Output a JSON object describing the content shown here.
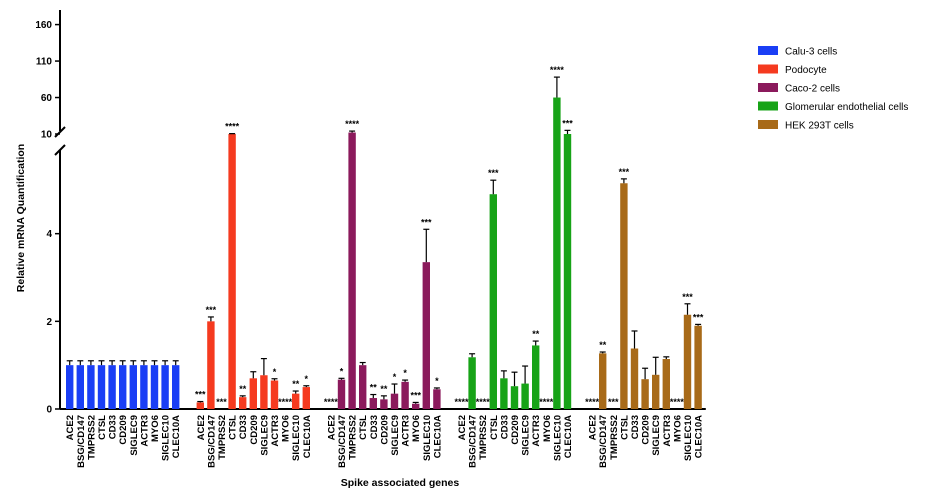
{
  "chart_data": {
    "type": "bar",
    "title": "",
    "xlabel": "Spike associated genes",
    "ylabel": "Relative mRNA Quantification",
    "yaxis": {
      "lower_range": [
        0,
        6
      ],
      "lower_ticks": [
        "0",
        "2",
        "4"
      ],
      "upper_range": [
        10,
        180
      ],
      "upper_ticks": [
        "10",
        "60",
        "110",
        "160"
      ],
      "broken": true
    },
    "grid": false,
    "legend_position": "top-right",
    "categories": [
      "ACE2",
      "BSG/CD147",
      "TMPRSS2",
      "CTSL",
      "CD33",
      "CD209",
      "SIGLEC9",
      "ACTR3",
      "MYO6",
      "SIGLEC10",
      "CLEC10A"
    ],
    "series": [
      {
        "name": "Calu-3 cells",
        "color": "#1a3ef5",
        "values": [
          1,
          1,
          1,
          1,
          1,
          1,
          1,
          1,
          1,
          1,
          1
        ],
        "errors": [
          0.1,
          0.1,
          0.1,
          0.1,
          0.1,
          0.1,
          0.1,
          0.1,
          0.1,
          0.1,
          0.1
        ],
        "significance": [
          "",
          "",
          "",
          "",
          "",
          "",
          "",
          "",
          "",
          "",
          ""
        ]
      },
      {
        "name": "Podocyte",
        "color": "#f53a1f",
        "values": [
          0.15,
          2.0,
          0,
          10,
          0.27,
          0.7,
          0.77,
          0.65,
          0,
          0.35,
          0.5
        ],
        "errors": [
          0.02,
          0.1,
          0,
          0.5,
          0.03,
          0.15,
          0.38,
          0.04,
          0,
          0.06,
          0.03
        ],
        "significance": [
          "***",
          "***",
          "***",
          "****",
          "**",
          "",
          "",
          "*",
          "****",
          "**",
          "*"
        ]
      },
      {
        "name": "Caco-2 cells",
        "color": "#8b1a5c",
        "values": [
          0,
          0.67,
          12,
          1.0,
          0.25,
          0.22,
          0.35,
          0.62,
          0.12,
          3.35,
          0.45
        ],
        "errors": [
          0,
          0.03,
          2,
          0.06,
          0.08,
          0.08,
          0.22,
          0.04,
          0.03,
          0.75,
          0.03
        ],
        "significance": [
          "****",
          "*",
          "****",
          "",
          "**",
          "**",
          "*",
          "*",
          "***",
          "***",
          "*"
        ]
      },
      {
        "name": "Glomerular endothelial cells",
        "color": "#17a317",
        "values": [
          0,
          1.18,
          0,
          4.9,
          0.7,
          0.52,
          0.58,
          1.45,
          0,
          60,
          10
        ],
        "errors": [
          0,
          0.08,
          0,
          0.32,
          0.17,
          0.32,
          0.4,
          0.1,
          0,
          28,
          5
        ],
        "significance": [
          "****",
          "",
          "****",
          "***",
          "",
          "",
          "",
          "**",
          "****",
          "****",
          "***"
        ]
      },
      {
        "name": "HEK 293T cells",
        "color": "#a86a18",
        "values": [
          0,
          1.27,
          0,
          5.15,
          1.38,
          0.68,
          0.78,
          1.14,
          0,
          2.15,
          1.9
        ],
        "errors": [
          0,
          0.03,
          0,
          0.1,
          0.4,
          0.25,
          0.4,
          0.05,
          0,
          0.25,
          0.03
        ],
        "significance": [
          "****",
          "**",
          "***",
          "***",
          "",
          "",
          "",
          "",
          "****",
          "***",
          "***"
        ]
      }
    ]
  }
}
